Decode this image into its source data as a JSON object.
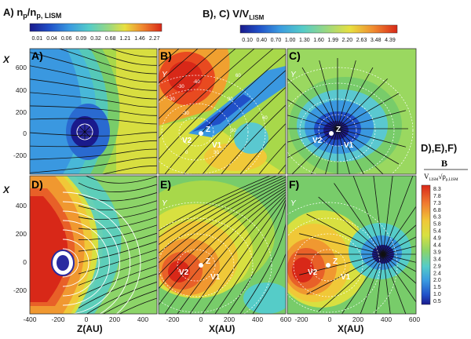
{
  "figure": {
    "colorbar_A": {
      "title_html": "A) n_p/n_p, LISM",
      "ticks": [
        "0.01",
        "0.04",
        "0.06",
        "0.09",
        "0.32",
        "0.68",
        "1.21",
        "1.46",
        "2.27"
      ]
    },
    "colorbar_BC": {
      "title": "B), C) V/V",
      "title_sub": "LISM",
      "ticks": [
        "0.10",
        "0.40",
        "0.70",
        "1.00",
        "1.30",
        "1.60",
        "1.99",
        "2.20",
        "2.63",
        "3.48",
        "4.39"
      ]
    },
    "colorbar_DEF": {
      "title": "D),E),F)",
      "frac_num": "B",
      "frac_den": "V",
      "frac_den_sub": "LISM",
      "frac_den_rho": "ρ",
      "frac_den_rho_sub": "p,LISM",
      "ticks": [
        "8.3",
        "7.8",
        "7.3",
        "6.8",
        "6.3",
        "5.8",
        "5.4",
        "4.9",
        "4.4",
        "3.9",
        "3.4",
        "2.9",
        "2.4",
        "2.0",
        "1.5",
        "1.0",
        "0.5"
      ]
    },
    "panels": [
      {
        "id": "A",
        "letter": "A)"
      },
      {
        "id": "B",
        "letter": "B)"
      },
      {
        "id": "C",
        "letter": "C)"
      },
      {
        "id": "D",
        "letter": "D)"
      },
      {
        "id": "E",
        "letter": "E)"
      },
      {
        "id": "F",
        "letter": "F)"
      }
    ],
    "axes": {
      "y_title": "X",
      "y_ticks_top": [
        "600",
        "400",
        "200",
        "0",
        "-200"
      ],
      "y_ticks_bottom": [
        "400",
        "200",
        "0",
        "-200"
      ],
      "x_title_left": "Z(AU)",
      "x_title_mid": "X(AU)",
      "x_title_right": "X(AU)",
      "x_ticks_left": [
        "-400",
        "-200",
        "0",
        "200",
        "400"
      ],
      "x_ticks_mid": [
        "-200",
        "0",
        "200",
        "400",
        "600"
      ],
      "x_ticks_right": [
        "-200",
        "0",
        "200",
        "400",
        "600"
      ]
    },
    "markers": {
      "Y": "Y",
      "Z": "Z",
      "V1": "V1",
      "V2": "V2"
    },
    "contour_labels_B": [
      "-30",
      "-60",
      "-30",
      "30",
      "60",
      "60",
      "30",
      "0",
      "30",
      "-30"
    ]
  },
  "chart_data": [
    {
      "type": "heatmap",
      "panel": "A",
      "quantity": "n_p/n_p,LISM",
      "xlabel": "",
      "ylabel": "X",
      "xlim": [
        -400,
        500
      ],
      "ylim": [
        -250,
        700
      ],
      "colorbar_ticks": [
        0.01,
        0.04,
        0.06,
        0.09,
        0.32,
        0.68,
        1.21,
        1.46,
        2.27
      ]
    },
    {
      "type": "heatmap",
      "panel": "B",
      "quantity": "V/V_LISM",
      "xlim": [
        -300,
        600
      ],
      "ylim": [
        -250,
        700
      ],
      "colorbar_ticks": [
        0.1,
        0.4,
        0.7,
        1.0,
        1.3,
        1.6,
        1.99,
        2.2,
        2.63,
        3.48,
        4.39
      ],
      "contour_labels": [
        -60,
        -30,
        0,
        30,
        60
      ]
    },
    {
      "type": "heatmap",
      "panel": "C",
      "quantity": "V/V_LISM",
      "xlim": [
        -300,
        600
      ],
      "ylim": [
        -250,
        700
      ]
    },
    {
      "type": "heatmap",
      "panel": "D",
      "quantity": "B/(V_LISM sqrt(rho_p,LISM))",
      "xlabel": "Z(AU)",
      "ylabel": "X",
      "xlim": [
        -400,
        500
      ],
      "ylim": [
        -250,
        500
      ],
      "colorbar_ticks": [
        8.3,
        7.8,
        7.3,
        6.8,
        6.3,
        5.8,
        5.4,
        4.9,
        4.4,
        3.9,
        3.4,
        2.9,
        2.4,
        2.0,
        1.5,
        1.0,
        0.5
      ]
    },
    {
      "type": "heatmap",
      "panel": "E",
      "quantity": "B/(V_LISM sqrt(rho_p,LISM))",
      "xlabel": "X(AU)",
      "xlim": [
        -300,
        600
      ],
      "ylim": [
        -250,
        500
      ]
    },
    {
      "type": "heatmap",
      "panel": "F",
      "quantity": "B/(V_LISM sqrt(rho_p,LISM))",
      "xlabel": "X(AU)",
      "xlim": [
        -300,
        600
      ],
      "ylim": [
        -250,
        500
      ]
    }
  ],
  "colors": {
    "jet": [
      "#1a1a8c",
      "#2030c8",
      "#2d6fe0",
      "#3aa0e8",
      "#45c8d8",
      "#5ad0a0",
      "#78cc6a",
      "#a8d848",
      "#d8e040",
      "#f0c838",
      "#f09830",
      "#e86028",
      "#d82818"
    ],
    "densityA": [
      "#2a2aa0",
      "#2a5ac8",
      "#2e88d8",
      "#38b0e0",
      "#5ac8d0",
      "#8cd6a0",
      "#c8de60",
      "#f0d040",
      "#f08a30",
      "#e03a20"
    ]
  }
}
